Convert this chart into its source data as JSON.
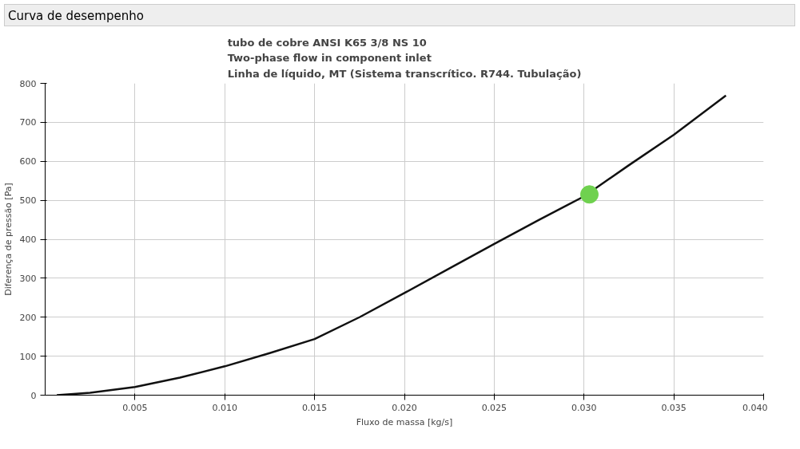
{
  "chart_data": {
    "type": "line",
    "title": "Curva de desempenho",
    "subtitle": "tubo de cobre ANSI K65 3/8 NS 10\nTwo-phase flow in component inlet\nLinha de líquido, MT (Sistema transcrítico. R744. Tubulação)",
    "xlabel": "Fluxo de massa [kg/s]",
    "ylabel": "Diferença de pressão [Pa]",
    "series": [
      {
        "color": "#111111",
        "x": [
          0.00065,
          0.0025,
          0.005,
          0.0075,
          0.01,
          0.0125,
          0.015,
          0.0175,
          0.02,
          0.0225,
          0.025,
          0.0275,
          0.03,
          0.0325,
          0.035,
          0.0379
        ],
        "values": [
          0,
          6,
          21,
          45,
          74,
          108,
          144,
          200,
          262,
          325,
          388,
          450,
          510,
          590,
          668,
          769
        ]
      },
      {
        "type": "scatter",
        "marker": "circle",
        "color": "#6fd14f",
        "x": [
          0.0303
        ],
        "values": [
          515
        ]
      }
    ],
    "xlim": [
      0,
      0.04
    ],
    "ylim": [
      0,
      800
    ],
    "xticks": [
      0.005,
      {
        "value": 0.01,
        "label": "0.010"
      },
      0.015,
      {
        "value": 0.02,
        "label": "0.020"
      },
      0.025,
      {
        "value": 0.03,
        "label": "0.030"
      },
      0.035,
      {
        "value": 0.04,
        "label": "0.040"
      }
    ],
    "yticks": [
      0,
      100,
      200,
      300,
      400,
      500,
      600,
      700,
      800
    ],
    "grid": true,
    "line_style": "solid"
  }
}
